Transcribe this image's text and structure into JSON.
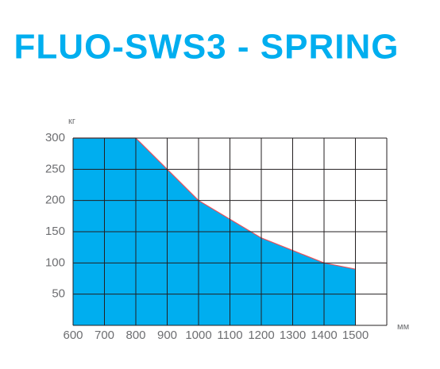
{
  "chart_data": {
    "type": "area",
    "title": "FLUO-SWS3 - SPRING",
    "y_label": "кг",
    "x_label": "мм",
    "x": [
      600,
      700,
      800,
      900,
      1000,
      1100,
      1200,
      1300,
      1400,
      1500
    ],
    "series": [
      {
        "color": "#00aeef",
        "line_color": "#e8505b",
        "values": [
          300,
          300,
          300,
          250,
          200,
          170,
          140,
          120,
          100,
          90
        ]
      }
    ],
    "xlim": [
      600,
      1600
    ],
    "xticks": [
      600,
      700,
      800,
      900,
      1000,
      1100,
      1200,
      1300,
      1400,
      1500
    ],
    "ylim": [
      0,
      300
    ],
    "yticks": [
      50,
      100,
      150,
      200,
      250,
      300
    ],
    "grid": true
  }
}
